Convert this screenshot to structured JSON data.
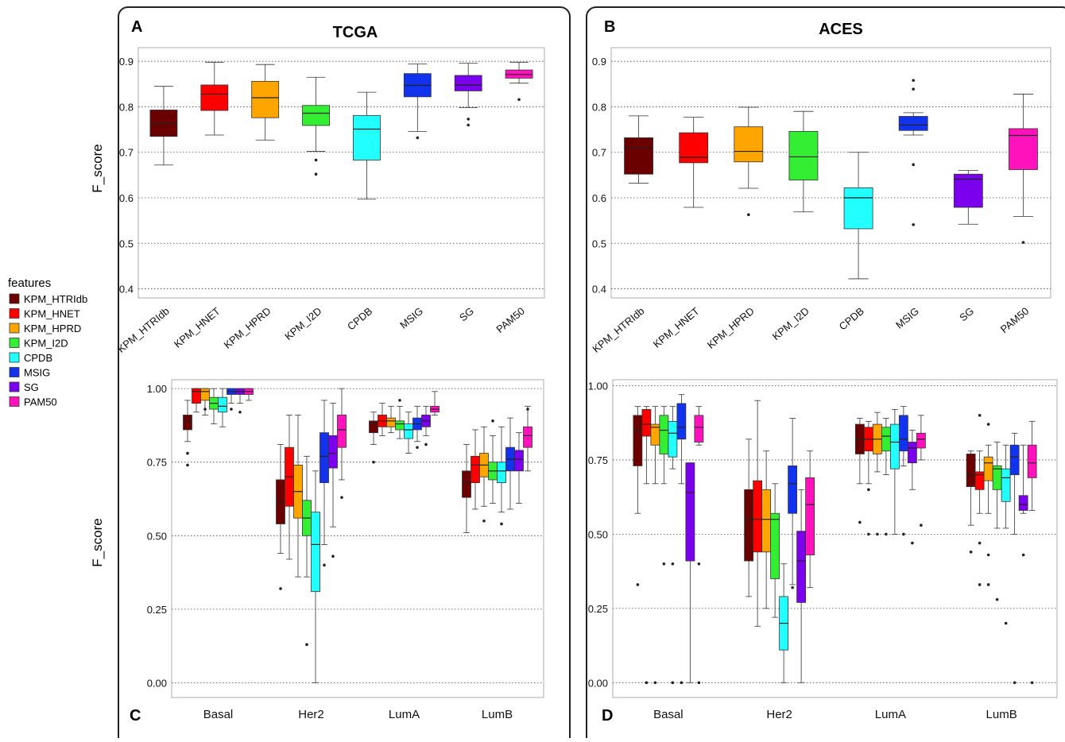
{
  "legend": {
    "title": "features",
    "items": [
      {
        "label": "KPM_HTRIdb",
        "color": "#6b0000"
      },
      {
        "label": "KPM_HNET",
        "color": "#ff0000"
      },
      {
        "label": "KPM_HPRD",
        "color": "#ffa500"
      },
      {
        "label": "KPM_I2D",
        "color": "#33ee33"
      },
      {
        "label": "CPDB",
        "color": "#22ffff"
      },
      {
        "label": "MSIG",
        "color": "#1133ee"
      },
      {
        "label": "SG",
        "color": "#7a00ee"
      },
      {
        "label": "PAM50",
        "color": "#ff11bb"
      }
    ]
  },
  "panels": {
    "A": {
      "letter": "A",
      "title": "TCGA",
      "ylabel": "F_score"
    },
    "B": {
      "letter": "B",
      "title": "ACES",
      "ylabel": ""
    },
    "C": {
      "letter": "C",
      "title": "",
      "ylabel": "F_score"
    },
    "D": {
      "letter": "D",
      "title": "",
      "ylabel": ""
    }
  },
  "chart_data": [
    {
      "panel": "A",
      "type": "box",
      "title": "TCGA",
      "ylabel": "F_score",
      "ylim": [
        0.38,
        0.93
      ],
      "yticks": [
        0.4,
        0.5,
        0.6,
        0.7,
        0.8,
        0.9
      ],
      "ytick_labels": [
        "0.4",
        "0.5",
        "0.6",
        "0.7",
        "0.8",
        "0.9"
      ],
      "grid": true,
      "categories": [
        "KPM_HTRIdb",
        "KPM_HNET",
        "KPM_HPRD",
        "KPM_I2D",
        "CPDB",
        "MSIG",
        "SG",
        "PAM50"
      ],
      "boxes": [
        {
          "min": 0.672,
          "q1": 0.735,
          "median": 0.763,
          "q3": 0.793,
          "max": 0.845,
          "outliers": []
        },
        {
          "min": 0.738,
          "q1": 0.792,
          "median": 0.828,
          "q3": 0.848,
          "max": 0.898,
          "outliers": []
        },
        {
          "min": 0.727,
          "q1": 0.776,
          "median": 0.82,
          "q3": 0.856,
          "max": 0.893,
          "outliers": []
        },
        {
          "min": 0.702,
          "q1": 0.759,
          "median": 0.786,
          "q3": 0.803,
          "max": 0.865,
          "outliers": [
            0.683,
            0.652
          ]
        },
        {
          "min": 0.597,
          "q1": 0.683,
          "median": 0.751,
          "q3": 0.781,
          "max": 0.832,
          "outliers": []
        },
        {
          "min": 0.746,
          "q1": 0.822,
          "median": 0.847,
          "q3": 0.873,
          "max": 0.894,
          "outliers": [
            0.732
          ]
        },
        {
          "min": 0.798,
          "q1": 0.835,
          "median": 0.848,
          "q3": 0.869,
          "max": 0.896,
          "outliers": [
            0.773,
            0.76
          ]
        },
        {
          "min": 0.852,
          "q1": 0.863,
          "median": 0.871,
          "q3": 0.881,
          "max": 0.898,
          "outliers": [
            0.816
          ]
        }
      ]
    },
    {
      "panel": "B",
      "type": "box",
      "title": "ACES",
      "ylim": [
        0.38,
        0.93
      ],
      "yticks": [
        0.4,
        0.5,
        0.6,
        0.7,
        0.8,
        0.9
      ],
      "ytick_labels": [
        "0.4",
        "0.5",
        "0.6",
        "0.7",
        "0.8",
        "0.9"
      ],
      "grid": true,
      "categories": [
        "KPM_HTRIdb",
        "KPM_HNET",
        "KPM_HPRD",
        "KPM_I2D",
        "CPDB",
        "MSIG",
        "SG",
        "PAM50"
      ],
      "boxes": [
        {
          "min": 0.632,
          "q1": 0.652,
          "median": 0.71,
          "q3": 0.732,
          "max": 0.78,
          "outliers": []
        },
        {
          "min": 0.579,
          "q1": 0.677,
          "median": 0.689,
          "q3": 0.743,
          "max": 0.777,
          "outliers": []
        },
        {
          "min": 0.621,
          "q1": 0.679,
          "median": 0.702,
          "q3": 0.756,
          "max": 0.799,
          "outliers": [
            0.563
          ]
        },
        {
          "min": 0.569,
          "q1": 0.639,
          "median": 0.69,
          "q3": 0.746,
          "max": 0.79,
          "outliers": []
        },
        {
          "min": 0.422,
          "q1": 0.532,
          "median": 0.6,
          "q3": 0.622,
          "max": 0.7,
          "outliers": []
        },
        {
          "min": 0.738,
          "q1": 0.748,
          "median": 0.76,
          "q3": 0.779,
          "max": 0.787,
          "outliers": [
            0.858,
            0.839,
            0.673,
            0.541
          ]
        },
        {
          "min": 0.542,
          "q1": 0.579,
          "median": 0.641,
          "q3": 0.652,
          "max": 0.66,
          "outliers": []
        },
        {
          "min": 0.559,
          "q1": 0.662,
          "median": 0.737,
          "q3": 0.752,
          "max": 0.828,
          "outliers": [
            0.502
          ]
        }
      ]
    },
    {
      "panel": "C",
      "type": "box",
      "ylabel": "F_score",
      "ylim": [
        -0.05,
        1.03
      ],
      "yticks": [
        0,
        0.25,
        0.5,
        0.75,
        1.0
      ],
      "ytick_labels": [
        "0.00",
        "0.25",
        "0.50",
        "0.75",
        "1.00"
      ],
      "grid": true,
      "categories": [
        "Basal",
        "Her2",
        "LumA",
        "LumB"
      ],
      "series": [
        "KPM_HTRIdb",
        "KPM_HNET",
        "KPM_HPRD",
        "KPM_I2D",
        "CPDB",
        "MSIG",
        "SG",
        "PAM50"
      ],
      "groups": [
        [
          {
            "min": 0.82,
            "q1": 0.86,
            "median": 0.89,
            "q3": 0.91,
            "max": 0.96,
            "outliers": [
              0.78,
              0.74
            ]
          },
          {
            "min": 0.92,
            "q1": 0.95,
            "median": 0.99,
            "q3": 1.0,
            "max": 1.0,
            "outliers": []
          },
          {
            "min": 0.91,
            "q1": 0.96,
            "median": 0.99,
            "q3": 1.0,
            "max": 1.0,
            "outliers": [
              0.93
            ]
          },
          {
            "min": 0.88,
            "q1": 0.93,
            "median": 0.95,
            "q3": 0.97,
            "max": 1.0,
            "outliers": []
          },
          {
            "min": 0.87,
            "q1": 0.92,
            "median": 0.94,
            "q3": 0.97,
            "max": 1.0,
            "outliers": []
          },
          {
            "min": 0.95,
            "q1": 0.98,
            "median": 0.99,
            "q3": 1.0,
            "max": 1.0,
            "outliers": [
              0.93
            ]
          },
          {
            "min": 0.95,
            "q1": 0.98,
            "median": 0.99,
            "q3": 1.0,
            "max": 1.0,
            "outliers": [
              0.92
            ]
          },
          {
            "min": 0.96,
            "q1": 0.98,
            "median": 0.99,
            "q3": 1.0,
            "max": 1.0,
            "outliers": []
          }
        ],
        [
          {
            "min": 0.44,
            "q1": 0.54,
            "median": 0.61,
            "q3": 0.69,
            "max": 0.81,
            "outliers": [
              0.32
            ]
          },
          {
            "min": 0.42,
            "q1": 0.6,
            "median": 0.7,
            "q3": 0.8,
            "max": 0.91,
            "outliers": []
          },
          {
            "min": 0.36,
            "q1": 0.56,
            "median": 0.65,
            "q3": 0.74,
            "max": 0.91,
            "outliers": []
          },
          {
            "min": 0.36,
            "q1": 0.5,
            "median": 0.56,
            "q3": 0.62,
            "max": 0.77,
            "outliers": [
              0.13
            ]
          },
          {
            "min": 0.0,
            "q1": 0.31,
            "median": 0.47,
            "q3": 0.58,
            "max": 0.72,
            "outliers": []
          },
          {
            "min": 0.47,
            "q1": 0.68,
            "median": 0.77,
            "q3": 0.85,
            "max": 0.96,
            "outliers": [
              0.4
            ]
          },
          {
            "min": 0.53,
            "q1": 0.73,
            "median": 0.78,
            "q3": 0.84,
            "max": 0.95,
            "outliers": [
              0.43
            ]
          },
          {
            "min": 0.69,
            "q1": 0.8,
            "median": 0.86,
            "q3": 0.91,
            "max": 1.0,
            "outliers": [
              0.63
            ]
          }
        ],
        [
          {
            "min": 0.81,
            "q1": 0.85,
            "median": 0.88,
            "q3": 0.89,
            "max": 0.92,
            "outliers": [
              0.75
            ]
          },
          {
            "min": 0.84,
            "q1": 0.87,
            "median": 0.89,
            "q3": 0.91,
            "max": 0.95,
            "outliers": []
          },
          {
            "min": 0.85,
            "q1": 0.87,
            "median": 0.89,
            "q3": 0.9,
            "max": 0.94,
            "outliers": []
          },
          {
            "min": 0.83,
            "q1": 0.86,
            "median": 0.88,
            "q3": 0.89,
            "max": 0.94,
            "outliers": [
              0.96
            ]
          },
          {
            "min": 0.78,
            "q1": 0.83,
            "median": 0.86,
            "q3": 0.88,
            "max": 0.92,
            "outliers": []
          },
          {
            "min": 0.82,
            "q1": 0.86,
            "median": 0.88,
            "q3": 0.9,
            "max": 0.94,
            "outliers": [
              0.8
            ]
          },
          {
            "min": 0.84,
            "q1": 0.87,
            "median": 0.89,
            "q3": 0.91,
            "max": 0.94,
            "outliers": [
              0.81
            ]
          },
          {
            "min": 0.91,
            "q1": 0.92,
            "median": 0.93,
            "q3": 0.94,
            "max": 0.99,
            "outliers": []
          }
        ],
        [
          {
            "min": 0.51,
            "q1": 0.63,
            "median": 0.68,
            "q3": 0.72,
            "max": 0.81,
            "outliers": []
          },
          {
            "min": 0.59,
            "q1": 0.68,
            "median": 0.74,
            "q3": 0.77,
            "max": 0.86,
            "outliers": []
          },
          {
            "min": 0.6,
            "q1": 0.7,
            "median": 0.74,
            "q3": 0.78,
            "max": 0.87,
            "outliers": [
              0.55
            ]
          },
          {
            "min": 0.61,
            "q1": 0.69,
            "median": 0.72,
            "q3": 0.75,
            "max": 0.84,
            "outliers": [
              0.89
            ]
          },
          {
            "min": 0.58,
            "q1": 0.68,
            "median": 0.72,
            "q3": 0.75,
            "max": 0.87,
            "outliers": [
              0.54
            ]
          },
          {
            "min": 0.59,
            "q1": 0.72,
            "median": 0.76,
            "q3": 0.8,
            "max": 0.9,
            "outliers": []
          },
          {
            "min": 0.61,
            "q1": 0.72,
            "median": 0.76,
            "q3": 0.79,
            "max": 0.85,
            "outliers": []
          },
          {
            "min": 0.72,
            "q1": 0.8,
            "median": 0.84,
            "q3": 0.87,
            "max": 0.94,
            "outliers": [
              0.93
            ]
          }
        ]
      ]
    },
    {
      "panel": "D",
      "type": "box",
      "ylim": [
        -0.05,
        1.02
      ],
      "yticks": [
        0,
        0.25,
        0.5,
        0.75,
        1.0
      ],
      "ytick_labels": [
        "0.00",
        "0.25",
        "0.50",
        "0.75",
        "1.00"
      ],
      "grid": true,
      "categories": [
        "Basal",
        "Her2",
        "LumA",
        "LumB"
      ],
      "series": [
        "KPM_HTRIdb",
        "KPM_HNET",
        "KPM_HPRD",
        "KPM_I2D",
        "CPDB",
        "MSIG",
        "SG",
        "PAM50"
      ],
      "groups": [
        [
          {
            "min": 0.57,
            "q1": 0.73,
            "median": 0.85,
            "q3": 0.9,
            "max": 0.93,
            "outliers": [
              0.33
            ]
          },
          {
            "min": 0.67,
            "q1": 0.83,
            "median": 0.87,
            "q3": 0.92,
            "max": 0.93,
            "outliers": [
              0.0
            ]
          },
          {
            "min": 0.67,
            "q1": 0.8,
            "median": 0.86,
            "q3": 0.87,
            "max": 0.93,
            "outliers": [
              0.0
            ]
          },
          {
            "min": 0.67,
            "q1": 0.77,
            "median": 0.85,
            "q3": 0.9,
            "max": 0.93,
            "outliers": [
              0.4
            ]
          },
          {
            "min": 0.72,
            "q1": 0.76,
            "median": 0.84,
            "q3": 0.88,
            "max": 0.93,
            "outliers": [
              0.4,
              0.0
            ]
          },
          {
            "min": 0.67,
            "q1": 0.82,
            "median": 0.86,
            "q3": 0.94,
            "max": 0.97,
            "outliers": [
              0.0
            ]
          },
          {
            "min": 0.0,
            "q1": 0.41,
            "median": 0.64,
            "q3": 0.74,
            "max": 0.74,
            "outliers": []
          },
          {
            "min": 0.8,
            "q1": 0.81,
            "median": 0.86,
            "q3": 0.9,
            "max": 0.93,
            "outliers": [
              0.4,
              0.0
            ]
          }
        ],
        [
          {
            "min": 0.29,
            "q1": 0.41,
            "median": 0.55,
            "q3": 0.65,
            "max": 0.82,
            "outliers": []
          },
          {
            "min": 0.19,
            "q1": 0.44,
            "median": 0.55,
            "q3": 0.68,
            "max": 0.95,
            "outliers": []
          },
          {
            "min": 0.25,
            "q1": 0.44,
            "median": 0.55,
            "q3": 0.65,
            "max": 0.78,
            "outliers": []
          },
          {
            "min": 0.22,
            "q1": 0.35,
            "median": 0.55,
            "q3": 0.57,
            "max": 0.67,
            "outliers": []
          },
          {
            "min": 0.0,
            "q1": 0.11,
            "median": 0.2,
            "q3": 0.29,
            "max": 0.4,
            "outliers": []
          },
          {
            "min": 0.33,
            "q1": 0.57,
            "median": 0.67,
            "q3": 0.73,
            "max": 0.89,
            "outliers": [
              0.32
            ]
          },
          {
            "min": 0.0,
            "q1": 0.27,
            "median": 0.41,
            "q3": 0.51,
            "max": 0.65,
            "outliers": []
          },
          {
            "min": 0.32,
            "q1": 0.43,
            "median": 0.6,
            "q3": 0.69,
            "max": 0.78,
            "outliers": []
          }
        ],
        [
          {
            "min": 0.67,
            "q1": 0.77,
            "median": 0.82,
            "q3": 0.87,
            "max": 0.89,
            "outliers": [
              0.54
            ]
          },
          {
            "min": 0.67,
            "q1": 0.78,
            "median": 0.82,
            "q3": 0.86,
            "max": 0.88,
            "outliers": [
              0.65,
              0.5
            ]
          },
          {
            "min": 0.71,
            "q1": 0.77,
            "median": 0.82,
            "q3": 0.87,
            "max": 0.91,
            "outliers": [
              0.5
            ]
          },
          {
            "min": 0.7,
            "q1": 0.78,
            "median": 0.83,
            "q3": 0.86,
            "max": 0.89,
            "outliers": [
              0.5
            ]
          },
          {
            "min": 0.5,
            "q1": 0.72,
            "median": 0.81,
            "q3": 0.87,
            "max": 0.92,
            "outliers": []
          },
          {
            "min": 0.73,
            "q1": 0.78,
            "median": 0.82,
            "q3": 0.9,
            "max": 0.93,
            "outliers": [
              0.5
            ]
          },
          {
            "min": 0.65,
            "q1": 0.74,
            "median": 0.79,
            "q3": 0.81,
            "max": 0.85,
            "outliers": [
              0.47
            ]
          },
          {
            "min": 0.75,
            "q1": 0.79,
            "median": 0.82,
            "q3": 0.84,
            "max": 0.9,
            "outliers": [
              0.53
            ]
          }
        ],
        [
          {
            "min": 0.53,
            "q1": 0.66,
            "median": 0.7,
            "q3": 0.77,
            "max": 0.78,
            "outliers": [
              0.44
            ]
          },
          {
            "min": 0.57,
            "q1": 0.65,
            "median": 0.7,
            "q3": 0.71,
            "max": 0.78,
            "outliers": [
              0.9,
              0.47,
              0.33
            ]
          },
          {
            "min": 0.57,
            "q1": 0.68,
            "median": 0.74,
            "q3": 0.76,
            "max": 0.8,
            "outliers": [
              0.87,
              0.43,
              0.33
            ]
          },
          {
            "min": 0.52,
            "q1": 0.65,
            "median": 0.72,
            "q3": 0.73,
            "max": 0.81,
            "outliers": [
              0.28
            ]
          },
          {
            "min": 0.52,
            "q1": 0.61,
            "median": 0.69,
            "q3": 0.72,
            "max": 0.8,
            "outliers": [
              0.2
            ]
          },
          {
            "min": 0.5,
            "q1": 0.7,
            "median": 0.76,
            "q3": 0.8,
            "max": 0.84,
            "outliers": [
              0.0
            ]
          },
          {
            "min": 0.57,
            "q1": 0.58,
            "median": 0.6,
            "q3": 0.63,
            "max": 0.8,
            "outliers": [
              0.43
            ]
          },
          {
            "min": 0.58,
            "q1": 0.69,
            "median": 0.74,
            "q3": 0.8,
            "max": 0.88,
            "outliers": [
              0.0
            ]
          }
        ]
      ]
    }
  ]
}
